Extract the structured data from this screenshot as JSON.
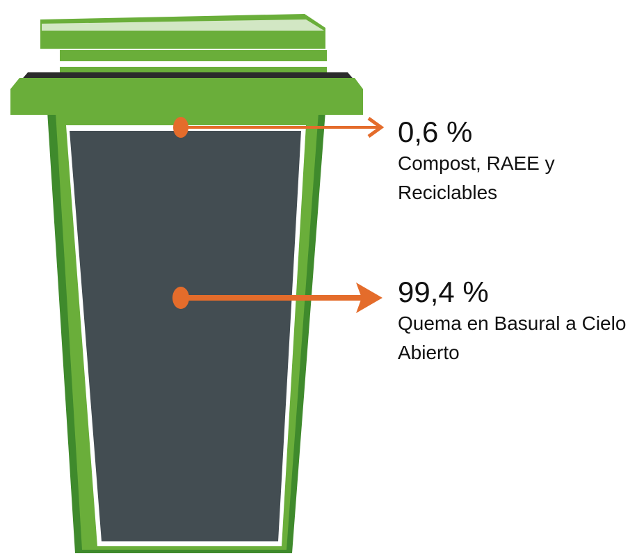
{
  "callouts": [
    {
      "value": "0,6 %",
      "label": "Compost, RAEE y Reciclables"
    },
    {
      "value": "99,4 %",
      "label": "Quema en Basural a Cielo Abierto"
    }
  ]
}
